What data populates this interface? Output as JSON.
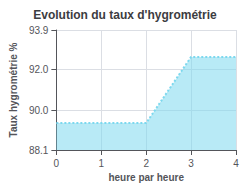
{
  "chart_data": {
    "type": "area",
    "title": "Evolution du taux d'hygrométrie",
    "xlabel": "heure par heure",
    "ylabel": "Taux hygrométrie %",
    "x": [
      0,
      1,
      2,
      3,
      4
    ],
    "values": [
      89.4,
      89.4,
      89.4,
      92.6,
      92.6
    ],
    "color": "#7dd8ee",
    "line_style": "dotted",
    "xlim": [
      0,
      4
    ],
    "xticks": [
      0,
      1,
      2,
      3,
      4
    ],
    "ylim": [
      88.1,
      93.9
    ],
    "yticks": [
      88.1,
      {
        "value": 90.0,
        "label": "90.0"
      },
      {
        "value": 92.0,
        "label": "92.0"
      },
      93.9
    ],
    "grid": true
  }
}
